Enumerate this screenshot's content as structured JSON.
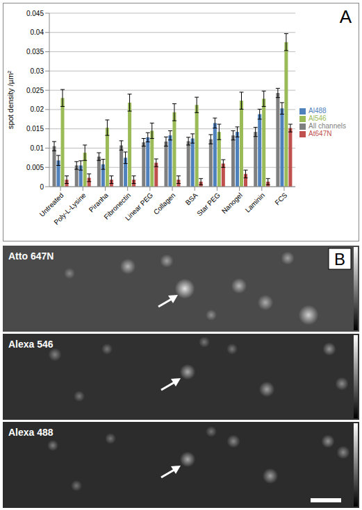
{
  "chart_data": {
    "type": "bar",
    "panel_label": "A",
    "y_label": "spot density /µm²",
    "categories": [
      "Untreated",
      "Poly-L-Lysine",
      "Piranha",
      "Fibronectin",
      "Linear PEG",
      "Collagen",
      "BSA",
      "Star PEG",
      "Nanogel",
      "Laminin",
      "FCS"
    ],
    "series": [
      {
        "name": "All channels",
        "color": "#7f7f7f",
        "values": [
          0.0105,
          0.0055,
          0.0078,
          0.0107,
          0.0115,
          0.0117,
          0.0118,
          0.0123,
          0.0133,
          0.0142,
          0.0243
        ],
        "errors": [
          0.0012,
          0.001,
          0.001,
          0.0012,
          0.001,
          0.0012,
          0.001,
          0.0012,
          0.0012,
          0.0012,
          0.0012
        ]
      },
      {
        "name": "Al488",
        "color": "#4f81bd",
        "values": [
          0.0068,
          0.0055,
          0.0058,
          0.0075,
          0.0128,
          0.0133,
          0.0125,
          0.0165,
          0.0142,
          0.0188,
          0.0203
        ],
        "errors": [
          0.0013,
          0.0012,
          0.0013,
          0.0015,
          0.0012,
          0.0012,
          0.0012,
          0.0013,
          0.0013,
          0.0013,
          0.0015
        ]
      },
      {
        "name": "Al546",
        "color": "#9bbb59",
        "values": [
          0.023,
          0.0088,
          0.0153,
          0.0218,
          0.0145,
          0.0193,
          0.0212,
          0.0142,
          0.0223,
          0.0228,
          0.0375
        ],
        "errors": [
          0.0022,
          0.002,
          0.002,
          0.0022,
          0.002,
          0.0022,
          0.002,
          0.002,
          0.0022,
          0.002,
          0.0022
        ]
      },
      {
        "name": "At647N",
        "color": "#c0504d",
        "values": [
          0.0018,
          0.0023,
          0.0018,
          0.0018,
          0.0062,
          0.0018,
          0.0013,
          0.006,
          0.0033,
          0.0013,
          0.0152
        ],
        "errors": [
          0.001,
          0.001,
          0.001,
          0.001,
          0.001,
          0.001,
          0.0008,
          0.001,
          0.001,
          0.0008,
          0.001
        ]
      }
    ],
    "ylim": [
      0,
      0.045
    ],
    "yticks": [
      0,
      0.005,
      0.01,
      0.015,
      0.02,
      0.025,
      0.03,
      0.035,
      0.04,
      0.045
    ],
    "grid": true,
    "legend": "right"
  },
  "images": {
    "panel_label": "B",
    "channels": [
      "Atto 647N",
      "Alexa 546",
      "Alexa 488"
    ]
  }
}
